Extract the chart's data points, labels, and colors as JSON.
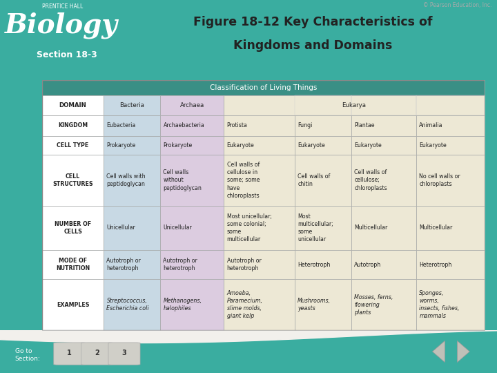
{
  "title_line1": "Figure 18-12 Key Characteristics of",
  "title_line2": "Kingdoms and Domains",
  "section": "Section 18-3",
  "copyright": "© Pearson Education, Inc.",
  "bg_color": "#3aada0",
  "table_title": "Classification of Living Things",
  "table_title_bg": "#3a8f85",
  "header_bg": "#f2f0ec",
  "bacteria_col_bg": "#c8d9e4",
  "archaea_col_bg": "#dccce0",
  "eukarya_col_bg": "#ede8d5",
  "row_label_bg": "#ffffff",
  "domain_row": [
    "DOMAIN",
    "Bacteria",
    "Archaea",
    "Eukarya",
    "",
    "",
    ""
  ],
  "kingdom_row": [
    "KINGDOM",
    "Eubacteria",
    "Archaebacteria",
    "Protista",
    "Fungi",
    "Plantae",
    "Animalia"
  ],
  "celltype_row": [
    "CELL TYPE",
    "Prokaryote",
    "Prokaryote",
    "Eukaryote",
    "Eukaryote",
    "Eukaryote",
    "Eukaryote"
  ],
  "cellstruct_row": [
    "CELL\nSTRUCTURES",
    "Cell walls with\npeptidoglycan",
    "Cell walls\nwithout\npeptidoglycan",
    "Cell walls of\ncellulose in\nsome; some\nhave\nchloroplasts",
    "Cell walls of\nchitin",
    "Cell walls of\ncellulose;\nchloroplasts",
    "No cell walls or\nchloroplasts"
  ],
  "numcells_row": [
    "NUMBER OF\nCELLS",
    "Unicellular",
    "Unicellular",
    "Most unicellular;\nsome colonial;\nsome\nmulticellular",
    "Most\nmulticellular;\nsome\nunicellular",
    "Multicellular",
    "Multicellular"
  ],
  "nutrition_row": [
    "MODE OF\nNUTRITION",
    "Autotroph or\nheterotroph",
    "Autotroph or\nheterotroph",
    "Autotroph or\nheterotroph",
    "Heterotroph",
    "Autotroph",
    "Heterotroph"
  ],
  "examples_row": [
    "EXAMPLES",
    "Streptococcus,\nEscherichia coli",
    "Methanogens,\nhalophiles",
    "Amoeba,\nParamecium,\nslime molds,\ngiant kelp",
    "Mushrooms,\nyeasts",
    "Mosses, ferns,\nflowering\nplants",
    "Sponges,\nworms,\ninsects, fishes,\nmammals"
  ]
}
